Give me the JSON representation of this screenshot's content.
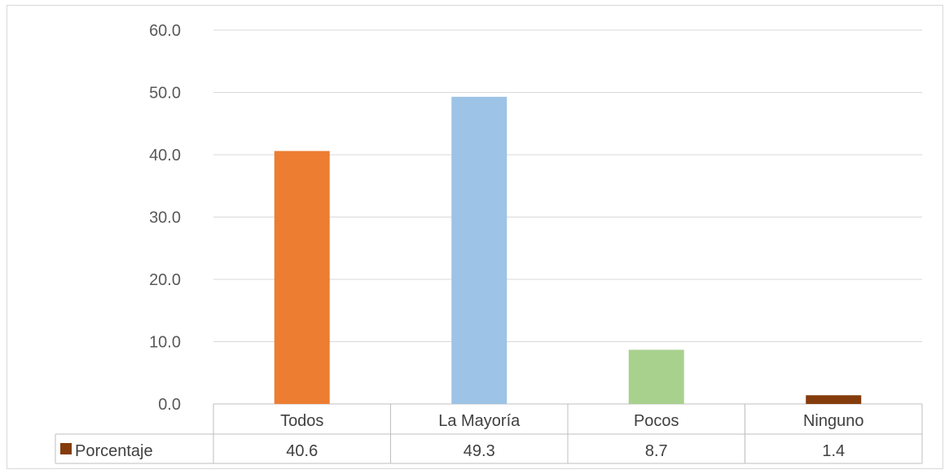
{
  "chart_data": {
    "type": "bar",
    "categories": [
      "Todos",
      "La Mayoría",
      "Pocos",
      "Ninguno"
    ],
    "series": [
      {
        "name": "Porcentaje",
        "values": [
          40.6,
          49.3,
          8.7,
          1.4
        ],
        "value_labels": [
          "40.6",
          "49.3",
          "8.7",
          "1.4"
        ]
      }
    ],
    "bar_colors": [
      "#ED7D31",
      "#9DC3E6",
      "#A9D18E",
      "#843C0C"
    ],
    "legend_color": "#843C0C",
    "ylim": [
      0,
      60
    ],
    "yticks": [
      "0.0",
      "10.0",
      "20.0",
      "30.0",
      "40.0",
      "50.0",
      "60.0"
    ],
    "grid": true,
    "data_table": true
  }
}
